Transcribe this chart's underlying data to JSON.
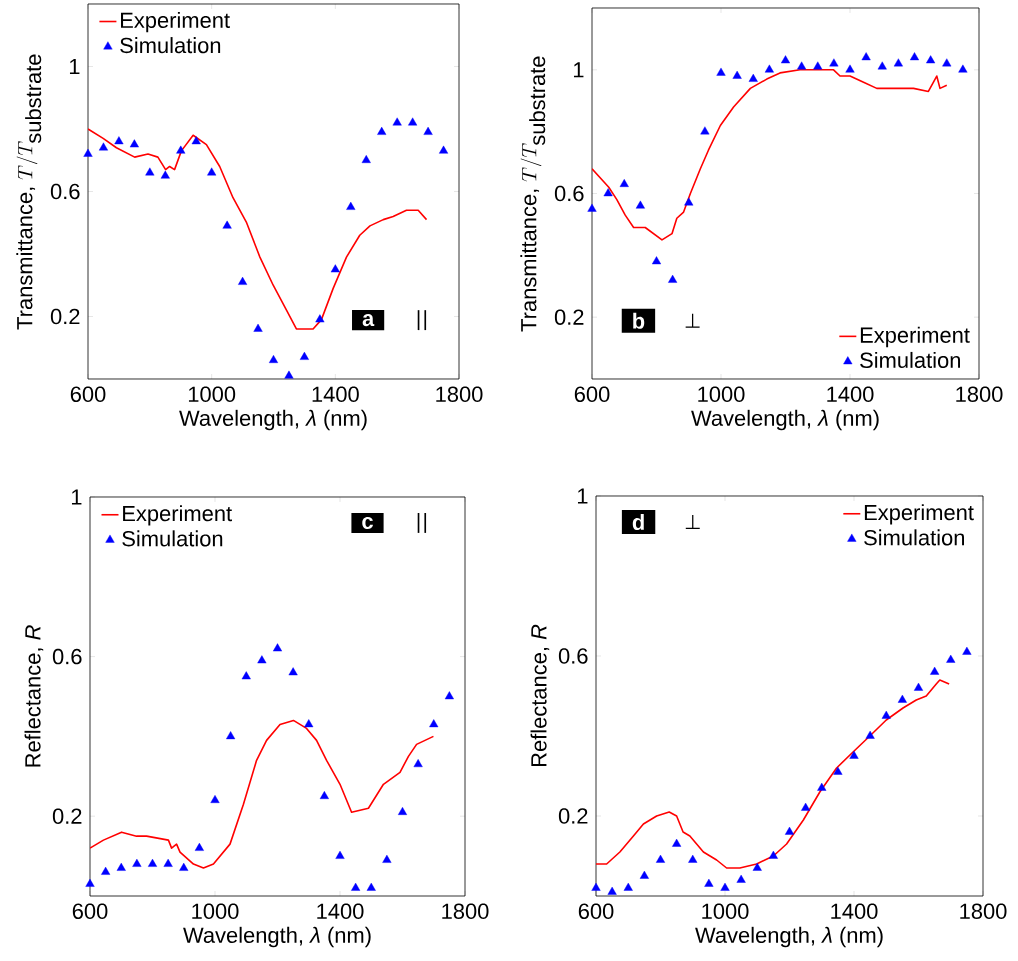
{
  "chart_data": [
    {
      "type": "line",
      "xlabel": "Wavelength, *λ* (nm)",
      "ylabel": "\\mbox{Transmittance, }T/T_{\\mbox{substrate}}",
      "xlim": [
        600,
        1800
      ],
      "ylim": [
        0,
        1.2
      ],
      "xticks": [
        600,
        1000,
        1400,
        1800
      ],
      "yticks": [
        0.2,
        0.6,
        1
      ],
      "legend": "top left",
      "annotations": [
        "a",
        "||"
      ],
      "series": [
        {
          "name": "Experiment",
          "type": "line",
          "color": "#ff0000",
          "x": [
            600,
            649,
            692,
            751,
            794,
            826,
            851,
            864,
            880,
            902,
            940,
            983,
            1026,
            1069,
            1113,
            1156,
            1199,
            1242,
            1274,
            1328,
            1355,
            1393,
            1436,
            1479,
            1512,
            1555,
            1587,
            1630,
            1668,
            1695
          ],
          "values": [
            0.8,
            0.77,
            0.74,
            0.71,
            0.72,
            0.71,
            0.67,
            0.68,
            0.67,
            0.73,
            0.78,
            0.75,
            0.68,
            0.58,
            0.5,
            0.39,
            0.3,
            0.22,
            0.16,
            0.16,
            0.19,
            0.29,
            0.39,
            0.46,
            0.49,
            0.51,
            0.52,
            0.54,
            0.54,
            0.51
          ]
        },
        {
          "name": "Simulation",
          "type": "scatter",
          "marker": "triangle",
          "color": "#0000ff",
          "x": [
            600,
            650,
            700,
            750,
            800,
            850,
            900,
            950,
            1000,
            1050,
            1100,
            1150,
            1200,
            1250,
            1300,
            1350,
            1400,
            1450,
            1500,
            1550,
            1600,
            1650,
            1700,
            1750
          ],
          "values": [
            0.72,
            0.74,
            0.76,
            0.75,
            0.66,
            0.65,
            0.73,
            0.76,
            0.66,
            0.49,
            0.31,
            0.16,
            0.06,
            0.01,
            0.07,
            0.19,
            0.35,
            0.55,
            0.7,
            0.79,
            0.82,
            0.82,
            0.79,
            0.73
          ]
        }
      ]
    },
    {
      "type": "line",
      "xlabel": "Wavelength, *λ* (nm)",
      "ylabel": "\\mbox{Transmittance, }T/T_{\\mbox{substrate}}",
      "xlim": [
        600,
        1800
      ],
      "ylim": [
        0,
        1.2
      ],
      "xticks": [
        600,
        1000,
        1400,
        1800
      ],
      "yticks": [
        0.2,
        0.6,
        1
      ],
      "legend": "bottom right",
      "annotations": [
        "b",
        "⊥"
      ],
      "series": [
        {
          "name": "Experiment",
          "type": "line",
          "color": "#ff0000",
          "x": [
            600,
            652,
            677,
            703,
            729,
            765,
            791,
            817,
            848,
            863,
            884,
            905,
            936,
            961,
            998,
            1039,
            1091,
            1142,
            1183,
            1245,
            1307,
            1349,
            1369,
            1400,
            1442,
            1483,
            1545,
            1597,
            1643,
            1669,
            1679,
            1700
          ],
          "values": [
            0.68,
            0.62,
            0.58,
            0.53,
            0.49,
            0.49,
            0.47,
            0.45,
            0.47,
            0.52,
            0.54,
            0.6,
            0.68,
            0.74,
            0.82,
            0.88,
            0.94,
            0.97,
            0.99,
            1.0,
            1.0,
            1.0,
            0.98,
            0.98,
            0.96,
            0.94,
            0.94,
            0.94,
            0.93,
            0.98,
            0.94,
            0.95
          ]
        },
        {
          "name": "Simulation",
          "type": "scatter",
          "marker": "triangle",
          "color": "#0000ff",
          "x": [
            600,
            650,
            700,
            750,
            800,
            850,
            900,
            950,
            1000,
            1050,
            1100,
            1150,
            1200,
            1250,
            1300,
            1350,
            1400,
            1450,
            1500,
            1550,
            1600,
            1650,
            1700,
            1750
          ],
          "values": [
            0.55,
            0.6,
            0.63,
            0.56,
            0.38,
            0.32,
            0.57,
            0.8,
            0.99,
            0.98,
            0.97,
            1.0,
            1.03,
            1.01,
            1.01,
            1.02,
            1.0,
            1.04,
            1.01,
            1.02,
            1.04,
            1.03,
            1.02,
            1.0
          ]
        }
      ]
    },
    {
      "type": "line",
      "xlabel": "Wavelength, *λ* (nm)",
      "ylabel": "Reflectance, *R*",
      "xlim": [
        600,
        1800
      ],
      "ylim": [
        0,
        1
      ],
      "xticks": [
        600,
        1000,
        1400,
        1800
      ],
      "yticks": [
        0.2,
        0.6,
        1
      ],
      "legend": "top left",
      "annotations": [
        "c",
        "||"
      ],
      "series": [
        {
          "name": "Experiment",
          "type": "line",
          "color": "#ff0000",
          "x": [
            600,
            643,
            701,
            749,
            781,
            851,
            861,
            877,
            888,
            931,
            963,
            995,
            1048,
            1091,
            1133,
            1165,
            1208,
            1251,
            1293,
            1325,
            1357,
            1400,
            1437,
            1491,
            1539,
            1592,
            1619,
            1645,
            1672,
            1699
          ],
          "values": [
            0.12,
            0.14,
            0.16,
            0.15,
            0.15,
            0.14,
            0.12,
            0.13,
            0.11,
            0.08,
            0.07,
            0.08,
            0.13,
            0.23,
            0.34,
            0.39,
            0.43,
            0.44,
            0.42,
            0.39,
            0.34,
            0.28,
            0.21,
            0.22,
            0.28,
            0.31,
            0.35,
            0.38,
            0.39,
            0.4
          ]
        },
        {
          "name": "Simulation",
          "type": "scatter",
          "marker": "triangle",
          "color": "#0000ff",
          "x": [
            600,
            650,
            700,
            750,
            800,
            850,
            900,
            950,
            1000,
            1050,
            1100,
            1150,
            1200,
            1250,
            1300,
            1350,
            1400,
            1450,
            1500,
            1550,
            1600,
            1650,
            1700,
            1750
          ],
          "values": [
            0.03,
            0.06,
            0.07,
            0.08,
            0.08,
            0.08,
            0.07,
            0.12,
            0.24,
            0.4,
            0.55,
            0.59,
            0.62,
            0.56,
            0.43,
            0.25,
            0.1,
            0.02,
            0.02,
            0.09,
            0.21,
            0.33,
            0.43,
            0.5
          ]
        }
      ]
    },
    {
      "type": "line",
      "xlabel": "Wavelength, *λ* (nm)",
      "ylabel": "Reflectance, *R*",
      "xlim": [
        600,
        1800
      ],
      "ylim": [
        0,
        1
      ],
      "xticks": [
        600,
        1000,
        1400,
        1800
      ],
      "yticks": [
        0.2,
        0.6,
        1
      ],
      "legend": "top right",
      "annotations": [
        "d",
        "⊥"
      ],
      "series": [
        {
          "name": "Experiment",
          "type": "line",
          "color": "#ff0000",
          "x": [
            600,
            633,
            674,
            716,
            747,
            788,
            827,
            850,
            870,
            891,
            912,
            933,
            974,
            1005,
            1046,
            1098,
            1150,
            1191,
            1243,
            1294,
            1346,
            1397,
            1449,
            1500,
            1552,
            1593,
            1624,
            1655,
            1666,
            1695
          ],
          "values": [
            0.08,
            0.08,
            0.11,
            0.15,
            0.18,
            0.2,
            0.21,
            0.2,
            0.16,
            0.15,
            0.13,
            0.11,
            0.09,
            0.07,
            0.07,
            0.08,
            0.1,
            0.13,
            0.19,
            0.26,
            0.32,
            0.36,
            0.4,
            0.44,
            0.47,
            0.49,
            0.5,
            0.53,
            0.54,
            0.53
          ]
        },
        {
          "name": "Simulation",
          "type": "scatter",
          "marker": "triangle",
          "color": "#0000ff",
          "x": [
            600,
            650,
            700,
            750,
            800,
            850,
            900,
            950,
            1000,
            1050,
            1100,
            1150,
            1200,
            1250,
            1300,
            1350,
            1400,
            1450,
            1500,
            1550,
            1600,
            1650,
            1700,
            1750
          ],
          "values": [
            0.02,
            0.01,
            0.02,
            0.05,
            0.09,
            0.13,
            0.09,
            0.03,
            0.02,
            0.04,
            0.07,
            0.1,
            0.16,
            0.22,
            0.27,
            0.31,
            0.35,
            0.4,
            0.45,
            0.49,
            0.52,
            0.56,
            0.59,
            0.61
          ]
        }
      ]
    }
  ]
}
